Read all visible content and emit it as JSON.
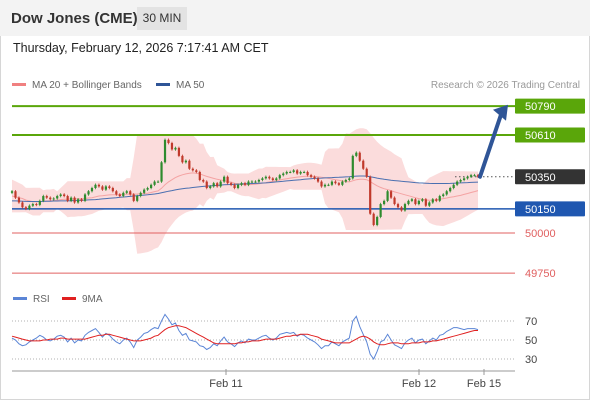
{
  "header": {
    "title": "Dow Jones (CME)",
    "timeframe": "30 MIN"
  },
  "datetime": "Thursday, February 12, 2026 7:17:41 AM CET",
  "legend": {
    "items": [
      {
        "label": "MA 20 + Bollinger Bands",
        "color": "#f08080"
      },
      {
        "label": "MA 50",
        "color": "#2f5597"
      }
    ],
    "credit": "Research © 2026 Trading Central"
  },
  "colors": {
    "up": "#2e8b2e",
    "down": "#c0392b",
    "resistance": "#5aa60a",
    "support_blue": "#1f57b0",
    "support_red": "#e06060",
    "band_fill": "#fbdcdc",
    "ma50": "#4a6fb0",
    "rsi": "#5b85d6",
    "rsi_ma": "#e02020"
  },
  "chart_data": [
    {
      "type": "candlestick",
      "title": "",
      "ylim": [
        49650,
        50900
      ],
      "current_price": 50350,
      "levels": [
        {
          "value": 50790,
          "label": "50790",
          "kind": "resistance"
        },
        {
          "value": 50610,
          "label": "50610",
          "kind": "resistance"
        },
        {
          "value": 50350,
          "label": "50350",
          "kind": "current"
        },
        {
          "value": 50150,
          "label": "50150",
          "kind": "support"
        },
        {
          "value": 50000,
          "label": "50000",
          "kind": "support"
        },
        {
          "value": 49750,
          "label": "49750",
          "kind": "support"
        }
      ],
      "x_ticks": [
        "Feb 11",
        "Feb 12",
        "Feb 15"
      ],
      "close": [
        50260,
        50220,
        50190,
        50160,
        50150,
        50170,
        50180,
        50175,
        50200,
        50230,
        50220,
        50210,
        50215,
        50230,
        50240,
        50230,
        50200,
        50220,
        50190,
        50210,
        50200,
        50240,
        50260,
        50280,
        50300,
        50290,
        50270,
        50290,
        50280,
        50260,
        50240,
        50230,
        50250,
        50260,
        50240,
        50200,
        50230,
        50250,
        50270,
        50280,
        50300,
        50320,
        50320,
        50440,
        50580,
        50560,
        50520,
        50530,
        50480,
        50440,
        50450,
        50400,
        50390,
        50380,
        50330,
        50320,
        50280,
        50290,
        50310,
        50290,
        50320,
        50350,
        50310,
        50300,
        50280,
        50300,
        50310,
        50300,
        50320,
        50320,
        50320,
        50330,
        50340,
        50350,
        50340,
        50330,
        50340,
        50360,
        50370,
        50380,
        50380,
        50390,
        50370,
        50380,
        50380,
        50360,
        50350,
        50340,
        50320,
        50290,
        50300,
        50300,
        50320,
        50310,
        50300,
        50320,
        50330,
        50340,
        50480,
        50500,
        50450,
        50400,
        50350,
        50120,
        50050,
        50100,
        50180,
        50200,
        50260,
        50220,
        50180,
        50160,
        50140,
        50180,
        50200,
        50210,
        50180,
        50200,
        50210,
        50170,
        50190,
        50210,
        50200,
        50230,
        50240,
        50260,
        50280,
        50300,
        50320,
        50330,
        50340,
        50350,
        50360,
        50360,
        50350
      ],
      "ma20": [
        50230,
        50225,
        50220,
        50215,
        50205,
        50200,
        50195,
        50195,
        50195,
        50198,
        50200,
        50200,
        50202,
        50205,
        50208,
        50210,
        50210,
        50212,
        50212,
        50213,
        50213,
        50215,
        50218,
        50220,
        50225,
        50230,
        50232,
        50235,
        50237,
        50238,
        50238,
        50238,
        50240,
        50242,
        50242,
        50242,
        50243,
        50244,
        50246,
        50248,
        50252,
        50258,
        50262,
        50278,
        50300,
        50318,
        50332,
        50345,
        50355,
        50362,
        50368,
        50372,
        50374,
        50372,
        50368,
        50360,
        50352,
        50346,
        50340,
        50334,
        50330,
        50326,
        50320,
        50316,
        50310,
        50306,
        50302,
        50300,
        50300,
        50302,
        50304,
        50306,
        50310,
        50314,
        50318,
        50322,
        50326,
        50330,
        50334,
        50338,
        50342,
        50345,
        50348,
        50350,
        50352,
        50353,
        50353,
        50352,
        50350,
        50347,
        50344,
        50340,
        50336,
        50332,
        50328,
        50324,
        50320,
        50318,
        50325,
        50332,
        50335,
        50335,
        50332,
        50320,
        50306,
        50294,
        50284,
        50276,
        50270,
        50264,
        50256,
        50250,
        50244,
        50238,
        50232,
        50226,
        50220,
        50214,
        50210,
        50206,
        50204,
        50204,
        50206,
        50210,
        50214,
        50218,
        50222,
        50226,
        50230,
        50234,
        50240,
        50246,
        50252,
        50258,
        50264
      ],
      "ma50": [
        50200,
        50200,
        50199,
        50198,
        50197,
        50196,
        50196,
        50196,
        50196,
        50197,
        50198,
        50198,
        50199,
        50199,
        50200,
        50200,
        50200,
        50201,
        50202,
        50203,
        50204,
        50205,
        50206,
        50207,
        50208,
        50210,
        50212,
        50214,
        50216,
        50218,
        50220,
        50222,
        50224,
        50226,
        50228,
        50230,
        50232,
        50234,
        50236,
        50238,
        50240,
        50243,
        50246,
        50250,
        50255,
        50260,
        50264,
        50268,
        50272,
        50275,
        50278,
        50280,
        50283,
        50286,
        50288,
        50290,
        50292,
        50293,
        50295,
        50296,
        50298,
        50300,
        50301,
        50302,
        50303,
        50304,
        50305,
        50306,
        50307,
        50308,
        50309,
        50310,
        50311,
        50312,
        50314,
        50316,
        50318,
        50320,
        50322,
        50324,
        50326,
        50328,
        50330,
        50332,
        50334,
        50336,
        50338,
        50340,
        50341,
        50342,
        50343,
        50344,
        50345,
        50346,
        50347,
        50348,
        50349,
        50350,
        50352,
        50354,
        50355,
        50355,
        50354,
        50350,
        50346,
        50342,
        50338,
        50334,
        50331,
        50328,
        50326,
        50324,
        50322,
        50320,
        50318,
        50316,
        50314,
        50312,
        50311,
        50310,
        50309,
        50308,
        50308,
        50308,
        50308,
        50308,
        50309,
        50310,
        50311,
        50312,
        50313,
        50314,
        50315,
        50316,
        50317
      ]
    },
    {
      "type": "line",
      "title": "",
      "ylim": [
        20,
        85
      ],
      "y_ticks": [
        70,
        50,
        30
      ],
      "x_ticks": [
        "Feb 11",
        "Feb 12",
        "Feb 15"
      ],
      "series": [
        {
          "name": "RSI",
          "color": "#5b85d6",
          "values": [
            52,
            50,
            46,
            44,
            45,
            48,
            50,
            52,
            55,
            53,
            50,
            49,
            51,
            54,
            55,
            53,
            48,
            52,
            47,
            50,
            49,
            55,
            58,
            60,
            62,
            58,
            53,
            57,
            55,
            51,
            48,
            46,
            50,
            52,
            48,
            42,
            50,
            53,
            57,
            58,
            61,
            63,
            62,
            70,
            77,
            72,
            66,
            68,
            60,
            55,
            57,
            50,
            49,
            48,
            44,
            43,
            40,
            42,
            46,
            44,
            49,
            53,
            48,
            46,
            43,
            47,
            49,
            47,
            51,
            50,
            50,
            52,
            54,
            55,
            52,
            50,
            52,
            56,
            57,
            58,
            57,
            58,
            54,
            56,
            55,
            52,
            50,
            48,
            45,
            41,
            44,
            44,
            48,
            46,
            44,
            48,
            50,
            52,
            70,
            75,
            64,
            56,
            48,
            35,
            30,
            38,
            48,
            50,
            56,
            50,
            45,
            43,
            41,
            47,
            50,
            52,
            47,
            50,
            51,
            46,
            49,
            52,
            50,
            55,
            56,
            59,
            61,
            63,
            63,
            62,
            61,
            62,
            62,
            62,
            61
          ]
        },
        {
          "name": "9MA",
          "color": "#e02020",
          "values": [
            54,
            53,
            52,
            51,
            50,
            49,
            49,
            49,
            49,
            50,
            50,
            51,
            51,
            51,
            52,
            52,
            51,
            51,
            51,
            51,
            51,
            51,
            52,
            53,
            54,
            55,
            55,
            56,
            56,
            55,
            54,
            53,
            52,
            51,
            50,
            49,
            49,
            49,
            50,
            51,
            52,
            54,
            55,
            58,
            61,
            63,
            64,
            65,
            65,
            64,
            63,
            61,
            59,
            57,
            55,
            53,
            51,
            49,
            47,
            46,
            46,
            46,
            46,
            46,
            46,
            47,
            47,
            48,
            48,
            49,
            49,
            49,
            50,
            51,
            51,
            51,
            51,
            52,
            53,
            54,
            54,
            55,
            55,
            56,
            56,
            56,
            55,
            54,
            53,
            51,
            50,
            49,
            48,
            47,
            47,
            47,
            47,
            47,
            49,
            51,
            53,
            54,
            53,
            51,
            48,
            46,
            45,
            45,
            46,
            47,
            47,
            47,
            46,
            46,
            46,
            47,
            47,
            47,
            48,
            48,
            48,
            49,
            49,
            50,
            51,
            52,
            53,
            54,
            55,
            56,
            57,
            58,
            59,
            60,
            60
          ]
        }
      ]
    }
  ]
}
